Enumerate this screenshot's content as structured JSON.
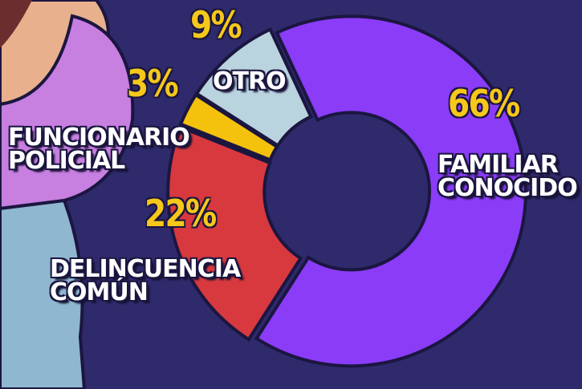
{
  "chart_data": {
    "type": "pie",
    "donut": true,
    "categories": [
      "FAMILIAR CONOCIDO",
      "DELINCUENCIA COMÚN",
      "FUNCIONARIO POLICIAL",
      "OTRO"
    ],
    "values": [
      66,
      22,
      3,
      9
    ],
    "value_labels": [
      "66%",
      "22%",
      "3%",
      "9%"
    ],
    "colors": [
      "#8a3cf7",
      "#d7393f",
      "#f4c20d",
      "#b9d3df"
    ]
  }
}
